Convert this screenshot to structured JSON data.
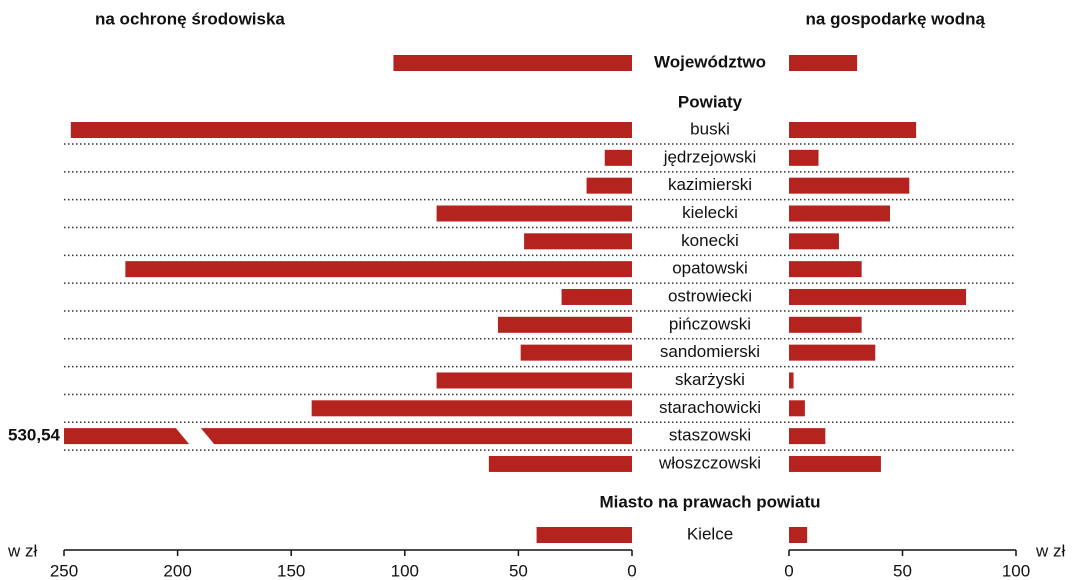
{
  "chart_data": {
    "type": "bar",
    "orientation": "horizontal",
    "unit_label": "w zł",
    "groups": [
      {
        "categories": [
          "Województwo"
        ]
      },
      {
        "name": "Powiaty",
        "categories": [
          "buski",
          "jędrzejowski",
          "kazimierski",
          "kielecki",
          "konecki",
          "opatowski",
          "ostrowiecki",
          "pińczowski",
          "sandomierski",
          "skarżyski",
          "starachowicki",
          "staszowski",
          "włoszczowski"
        ]
      },
      {
        "name": "Miasto na prawach powiatu",
        "categories": [
          "Kielce"
        ]
      }
    ],
    "series": [
      {
        "name": "na ochronę środowiska",
        "color": "#b5231f",
        "axis": "x",
        "values": [
          [
            105
          ],
          [
            247,
            12,
            20,
            86,
            47.5,
            223,
            31,
            59,
            49,
            86,
            141,
            530.54,
            63
          ],
          [
            42
          ]
        ],
        "value_labels": [
          [
            null
          ],
          [
            null,
            null,
            null,
            null,
            null,
            null,
            null,
            null,
            null,
            null,
            null,
            "530,54",
            null
          ],
          [
            null
          ]
        ]
      },
      {
        "name": "na gospodarkę wodną",
        "color": "#b5231f",
        "axis": "x2",
        "values": [
          [
            30
          ],
          [
            56,
            13,
            53,
            44.5,
            22,
            32,
            78,
            32,
            38,
            2,
            7,
            16,
            40.5
          ],
          [
            8
          ]
        ]
      }
    ],
    "xlim": [
      250,
      0
    ],
    "xticks": [
      250,
      200,
      150,
      100,
      50,
      0
    ],
    "x2lim": [
      0,
      100
    ],
    "x2ticks": [
      0,
      50,
      100
    ],
    "row_separators": "dotted"
  }
}
